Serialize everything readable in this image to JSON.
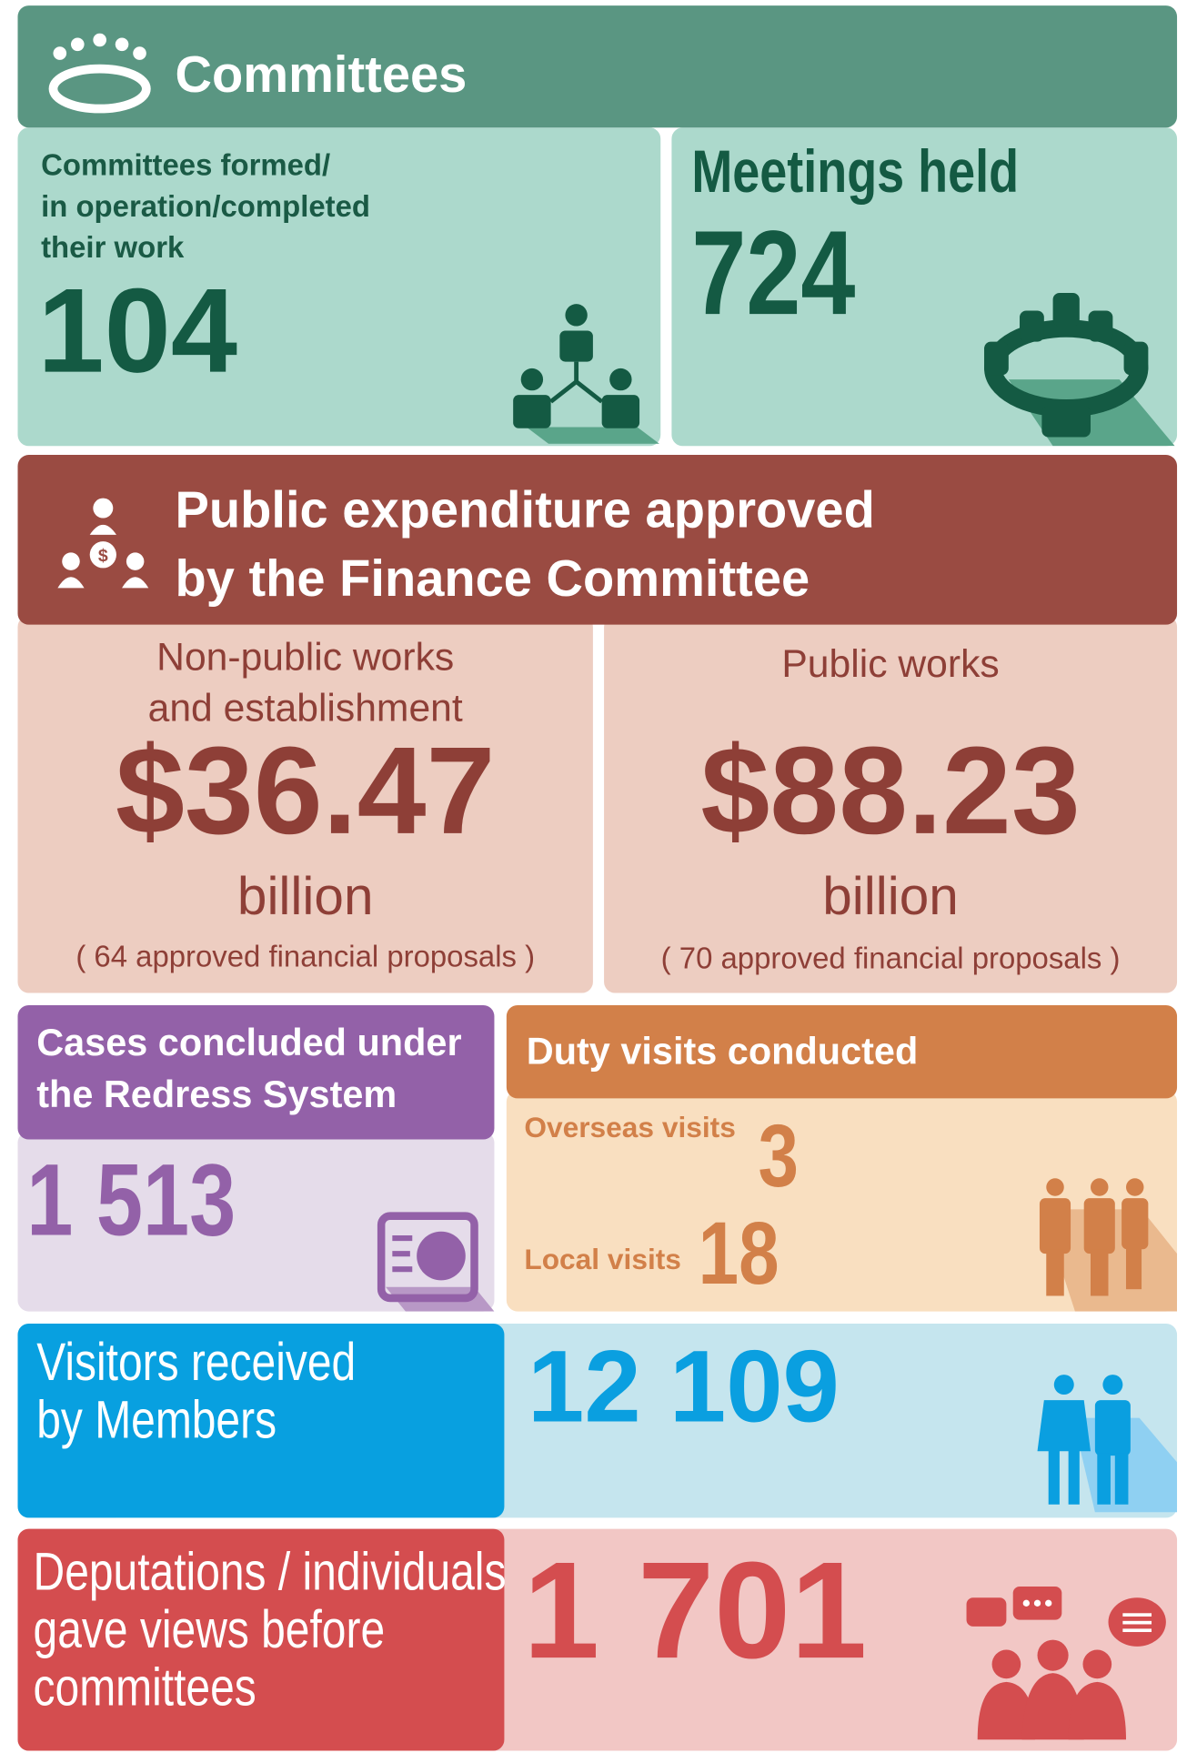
{
  "committees": {
    "title": "Committees",
    "formed": {
      "label": [
        "Committees formed/",
        "in operation/completed",
        "their work"
      ],
      "value": "104"
    },
    "meetings": {
      "label": "Meetings held",
      "value": "724"
    }
  },
  "finance": {
    "title": [
      "Public expenditure approved",
      "by the Finance Committee"
    ],
    "non_public": {
      "label": [
        "Non-public works",
        "and establishment"
      ],
      "amount": "$36.47",
      "unit": "billion",
      "note": "( 64 approved financial proposals )"
    },
    "public": {
      "label": [
        "Public works"
      ],
      "amount": "$88.23",
      "unit": "billion",
      "note": "( 70 approved financial proposals )"
    }
  },
  "redress": {
    "label": [
      "Cases concluded under",
      "the Redress System"
    ],
    "value": "1 513"
  },
  "duty": {
    "title": "Duty visits conducted",
    "overseas": {
      "label": "Overseas visits",
      "value": "3"
    },
    "local": {
      "label": "Local visits",
      "value": "18"
    }
  },
  "visitors": {
    "label": [
      "Visitors received",
      "by Members"
    ],
    "value": "12 109"
  },
  "deputations": {
    "label": [
      "Deputations / individuals",
      "gave views before",
      "committees"
    ],
    "value": "1 701"
  }
}
